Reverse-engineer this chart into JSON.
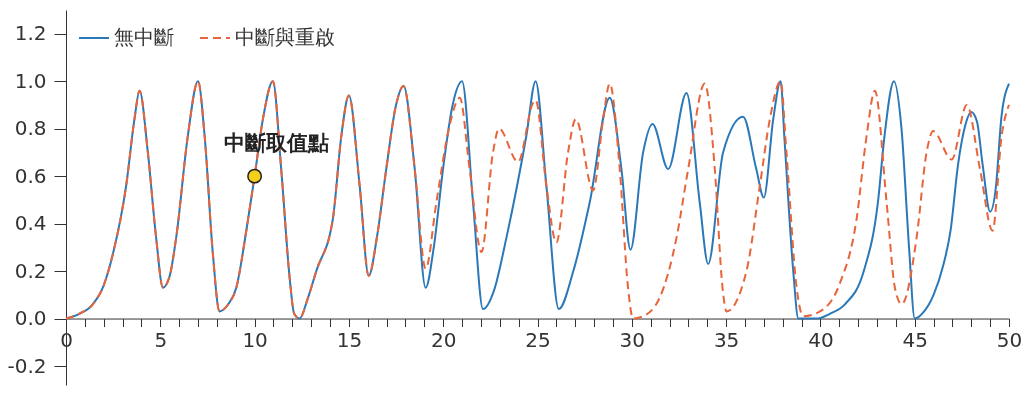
{
  "chart_data": {
    "type": "line",
    "legend": "top left",
    "grid": false,
    "marker": "none",
    "xlim": [
      0,
      50
    ],
    "ylim": [
      -0.28,
      1.3
    ],
    "xticks": [
      0,
      {
        "value": 1,
        "label": null
      },
      {
        "value": 2,
        "label": null
      },
      {
        "value": 3,
        "label": null
      },
      {
        "value": 4,
        "label": null
      },
      5,
      {
        "value": 6,
        "label": null
      },
      {
        "value": 7,
        "label": null
      },
      {
        "value": 8,
        "label": null
      },
      {
        "value": 9,
        "label": null
      },
      10,
      {
        "value": 11,
        "label": null
      },
      {
        "value": 12,
        "label": null
      },
      {
        "value": 13,
        "label": null
      },
      {
        "value": 14,
        "label": null
      },
      15,
      {
        "value": 16,
        "label": null
      },
      {
        "value": 17,
        "label": null
      },
      {
        "value": 18,
        "label": null
      },
      {
        "value": 19,
        "label": null
      },
      20,
      {
        "value": 21,
        "label": null
      },
      {
        "value": 22,
        "label": null
      },
      {
        "value": 23,
        "label": null
      },
      {
        "value": 24,
        "label": null
      },
      25,
      {
        "value": 26,
        "label": null
      },
      {
        "value": 27,
        "label": null
      },
      {
        "value": 28,
        "label": null
      },
      {
        "value": 29,
        "label": null
      },
      30,
      {
        "value": 31,
        "label": null
      },
      {
        "value": 32,
        "label": null
      },
      {
        "value": 33,
        "label": null
      },
      {
        "value": 34,
        "label": null
      },
      35,
      {
        "value": 36,
        "label": null
      },
      {
        "value": 37,
        "label": null
      },
      {
        "value": 38,
        "label": null
      },
      {
        "value": 39,
        "label": null
      },
      40,
      {
        "value": 41,
        "label": null
      },
      {
        "value": 42,
        "label": null
      },
      {
        "value": 43,
        "label": null
      },
      {
        "value": 44,
        "label": null
      },
      45,
      {
        "value": 46,
        "label": null
      },
      {
        "value": 47,
        "label": null
      },
      {
        "value": 48,
        "label": null
      },
      {
        "value": 49,
        "label": null
      },
      50
    ],
    "yticks": [
      {
        "value": -0.2,
        "label": "-0.2"
      },
      {
        "value": 0,
        "label": "0.0"
      },
      0.2,
      0.4,
      0.6,
      0.8,
      {
        "value": 1,
        "label": "1.0"
      },
      1.2
    ],
    "annotations": [
      {
        "text": "中斷取值點",
        "x": 10,
        "y": 0.6
      }
    ],
    "series": [
      {
        "name": "無中斷",
        "color": "#2b78b8",
        "line_style": "solid",
        "x": [
          0,
          0.7,
          1.42,
          2.0,
          2.48,
          3.19,
          3.63,
          3.9,
          4.34,
          4.78,
          5.14,
          5.5,
          5.84,
          6.46,
          7.0,
          7.35,
          7.79,
          8.14,
          8.6,
          9.03,
          9.56,
          10.0,
          10.44,
          10.97,
          11.41,
          11.86,
          12.1,
          12.39,
          12.8,
          13.27,
          14.15,
          14.6,
          15.0,
          15.57,
          16.05,
          16.5,
          16.98,
          17.5,
          17.9,
          18.49,
          19.07,
          19.5,
          19.99,
          20.5,
          21.0,
          21.58,
          22.11,
          22.7,
          23.35,
          24.41,
          24.9,
          25.47,
          26.13,
          26.9,
          27.77,
          28.83,
          29.45,
          29.93,
          30.6,
          31.1,
          31.93,
          32.9,
          33.6,
          34.05,
          34.84,
          35.9,
          36.6,
          37.0,
          37.5,
          37.89,
          38.1,
          38.56,
          38.83,
          39.8,
          40.5,
          41.3,
          42.3,
          43.05,
          43.4,
          43.9,
          44.3,
          44.7,
          45.0,
          45.5,
          46.0,
          46.5,
          46.9,
          47.3,
          47.7,
          48.0,
          48.3,
          48.6,
          49.0,
          49.3,
          49.6,
          50.0
        ],
        "values": [
          0,
          0.02,
          0.06,
          0.14,
          0.27,
          0.56,
          0.84,
          0.96,
          0.7,
          0.34,
          0.13,
          0.18,
          0.34,
          0.77,
          1.0,
          0.77,
          0.27,
          0.03,
          0.06,
          0.13,
          0.37,
          0.6,
          0.84,
          1.0,
          0.63,
          0.17,
          0.02,
          0.0,
          0.08,
          0.2,
          0.42,
          0.77,
          0.94,
          0.56,
          0.18,
          0.35,
          0.63,
          0.9,
          0.98,
          0.63,
          0.13,
          0.3,
          0.63,
          0.9,
          1.0,
          0.49,
          0.04,
          0.12,
          0.34,
          0.77,
          1.0,
          0.56,
          0.04,
          0.2,
          0.49,
          0.93,
          0.63,
          0.29,
          0.7,
          0.82,
          0.63,
          0.95,
          0.49,
          0.23,
          0.7,
          0.85,
          0.63,
          0.51,
          0.84,
          1.0,
          0.75,
          0.2,
          0.0,
          0.0,
          0.02,
          0.06,
          0.2,
          0.49,
          0.77,
          1.0,
          0.8,
          0.3,
          0.0,
          0.03,
          0.1,
          0.22,
          0.37,
          0.65,
          0.82,
          0.87,
          0.83,
          0.65,
          0.45,
          0.55,
          0.85,
          0.99
        ]
      },
      {
        "name": "中斷與重啟",
        "color": "#e8643a",
        "line_style": "dashed",
        "x": [
          0,
          0.7,
          1.42,
          2.0,
          2.48,
          3.19,
          3.63,
          3.9,
          4.34,
          4.78,
          5.14,
          5.5,
          5.84,
          6.46,
          7.0,
          7.35,
          7.79,
          8.14,
          8.6,
          9.03,
          9.56,
          10.0,
          10.44,
          10.97,
          11.41,
          11.86,
          12.1,
          12.39,
          12.8,
          13.27,
          14.15,
          14.6,
          15.0,
          15.57,
          16.05,
          16.5,
          16.98,
          17.5,
          17.9,
          18.49,
          19.07,
          19.64,
          20.3,
          20.88,
          21.4,
          22.03,
          22.64,
          22.96,
          23.97,
          24.77,
          24.9,
          25.47,
          26.0,
          26.62,
          27.03,
          27.95,
          28.48,
          28.83,
          29.36,
          29.8,
          30.07,
          30.6,
          31.49,
          32.37,
          32.99,
          33.87,
          34.4,
          34.81,
          35.02,
          36.08,
          36.79,
          37.32,
          37.89,
          38.2,
          38.74,
          39.09,
          39.98,
          41.04,
          41.92,
          42.45,
          42.89,
          43.51,
          43.95,
          44.31,
          45.1,
          45.63,
          45.98,
          46.96,
          47.76,
          48.46,
          49.13,
          49.61,
          50.0
        ],
        "values": [
          0,
          0.02,
          0.06,
          0.14,
          0.27,
          0.56,
          0.84,
          0.96,
          0.7,
          0.34,
          0.13,
          0.18,
          0.34,
          0.77,
          1.0,
          0.77,
          0.27,
          0.03,
          0.06,
          0.13,
          0.37,
          0.6,
          0.84,
          1.0,
          0.63,
          0.17,
          0.02,
          0.0,
          0.08,
          0.2,
          0.42,
          0.77,
          0.94,
          0.56,
          0.18,
          0.35,
          0.63,
          0.9,
          0.98,
          0.63,
          0.21,
          0.49,
          0.8,
          0.93,
          0.63,
          0.28,
          0.7,
          0.8,
          0.66,
          0.91,
          0.92,
          0.56,
          0.32,
          0.7,
          0.84,
          0.54,
          0.84,
          0.99,
          0.63,
          0.13,
          0.0,
          0.01,
          0.09,
          0.34,
          0.63,
          0.99,
          0.63,
          0.13,
          0.03,
          0.2,
          0.56,
          0.84,
          1.0,
          0.7,
          0.13,
          0.01,
          0.03,
          0.15,
          0.42,
          0.77,
          0.96,
          0.49,
          0.13,
          0.06,
          0.34,
          0.7,
          0.79,
          0.67,
          0.9,
          0.63,
          0.37,
          0.77,
          0.9
        ]
      },
      {
        "type": "scatter",
        "color": "#f5cf1a",
        "marker": "circle",
        "x": [
          10
        ],
        "values": [
          0.6
        ]
      }
    ]
  }
}
